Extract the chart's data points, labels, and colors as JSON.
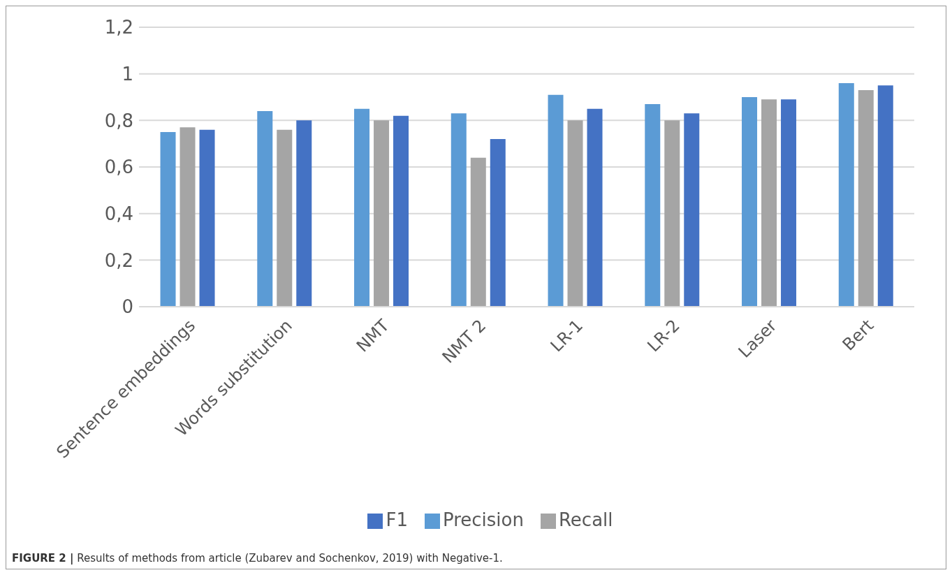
{
  "chart_data": {
    "type": "bar",
    "categories": [
      "Sentence embeddings",
      "Words substitution",
      "NMT",
      "NMT 2",
      "LR-1",
      "LR-2",
      "Laser",
      "Bert"
    ],
    "series": [
      {
        "name": "Precision",
        "color": "#5b9bd5",
        "values": [
          0.75,
          0.84,
          0.85,
          0.83,
          0.91,
          0.87,
          0.9,
          0.96
        ]
      },
      {
        "name": "Recall",
        "color": "#a5a5a5",
        "values": [
          0.77,
          0.76,
          0.8,
          0.64,
          0.8,
          0.8,
          0.89,
          0.93
        ]
      },
      {
        "name": "F1",
        "color": "#4472c4",
        "values": [
          0.76,
          0.8,
          0.82,
          0.72,
          0.85,
          0.83,
          0.89,
          0.95
        ]
      }
    ],
    "ylim": [
      0,
      1.2
    ],
    "yticks": [
      0,
      {
        "value": 0.2,
        "label": "0,2"
      },
      {
        "value": 0.4,
        "label": "0,4"
      },
      {
        "value": 0.6,
        "label": "0,6"
      },
      {
        "value": 0.8,
        "label": "0,8"
      },
      1,
      {
        "value": 1.2,
        "label": "1,2"
      }
    ],
    "grid": "y",
    "legend": "bottom",
    "annotations": [
      "FIGURE 2 | Results of methods from article (Zubarev and Sochenkov, 2019) with Negative-1."
    ]
  }
}
